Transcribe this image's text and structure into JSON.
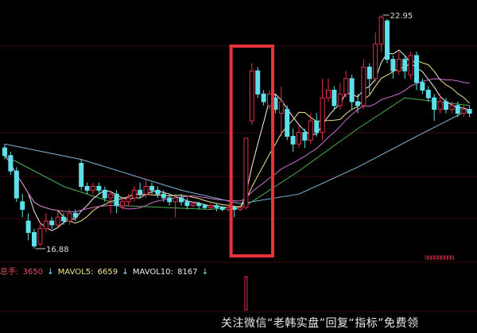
{
  "chart_data": {
    "type": "candlestick",
    "title": "",
    "colors": {
      "up": "#e0304a",
      "down": "#5fe0e8",
      "background": "#000000",
      "highlight_box": "#e8323c"
    },
    "price_labels": {
      "high": "22.95",
      "low": "16.88"
    },
    "candles_ohlc": [
      [
        19.5,
        19.6,
        19.2,
        19.3
      ],
      [
        19.3,
        19.4,
        18.8,
        18.9
      ],
      [
        18.9,
        19.0,
        18.1,
        18.2
      ],
      [
        18.1,
        18.3,
        17.7,
        17.9
      ],
      [
        17.6,
        17.8,
        17.1,
        17.3
      ],
      [
        17.3,
        17.4,
        16.88,
        16.95
      ],
      [
        17.0,
        17.6,
        16.95,
        17.4
      ],
      [
        17.4,
        17.8,
        17.3,
        17.6
      ],
      [
        17.6,
        17.7,
        17.4,
        17.5
      ],
      [
        17.5,
        17.9,
        17.4,
        17.7
      ],
      [
        17.7,
        17.8,
        17.5,
        17.6
      ],
      [
        17.6,
        17.9,
        17.5,
        17.8
      ],
      [
        17.8,
        17.9,
        17.6,
        17.7
      ],
      [
        19.1,
        19.2,
        18.4,
        18.5
      ],
      [
        18.5,
        18.6,
        18.3,
        18.4
      ],
      [
        18.4,
        18.6,
        18.3,
        18.5
      ],
      [
        18.5,
        18.6,
        18.3,
        18.4
      ],
      [
        18.4,
        18.5,
        18.1,
        18.2
      ],
      [
        18.2,
        18.4,
        17.8,
        18.3
      ],
      [
        18.3,
        18.4,
        17.8,
        18.0
      ],
      [
        18.0,
        18.2,
        17.9,
        18.1
      ],
      [
        18.1,
        18.3,
        18.0,
        18.2
      ],
      [
        18.2,
        18.5,
        18.1,
        18.4
      ],
      [
        18.4,
        18.6,
        18.2,
        18.3
      ],
      [
        18.3,
        18.7,
        18.2,
        18.5
      ],
      [
        18.5,
        18.6,
        18.3,
        18.4
      ],
      [
        18.4,
        18.5,
        18.2,
        18.3
      ],
      [
        18.3,
        18.4,
        18.1,
        18.2
      ],
      [
        18.2,
        18.3,
        18.0,
        18.1
      ],
      [
        18.1,
        18.3,
        17.7,
        18.2
      ],
      [
        18.2,
        18.3,
        18.0,
        18.1
      ],
      [
        18.1,
        18.2,
        17.9,
        18.0
      ],
      [
        18.0,
        18.1,
        17.95,
        18.05
      ],
      [
        18.05,
        18.1,
        17.9,
        18.0
      ],
      [
        18.0,
        18.05,
        17.9,
        17.95
      ],
      [
        17.95,
        18.05,
        17.9,
        18.0
      ],
      [
        18.0,
        18.05,
        17.85,
        17.95
      ],
      [
        17.95,
        18.0,
        17.85,
        17.9
      ],
      [
        17.9,
        18.0,
        17.85,
        17.95
      ],
      [
        17.95,
        18.0,
        17.7,
        17.9
      ],
      [
        17.9,
        18.0,
        17.85,
        17.95
      ],
      [
        17.95,
        19.75,
        17.9,
        19.75
      ],
      [
        20.2,
        21.7,
        20.1,
        21.5
      ],
      [
        21.5,
        21.6,
        20.8,
        20.9
      ],
      [
        20.9,
        21.0,
        20.6,
        20.7
      ],
      [
        20.6,
        21.0,
        20.5,
        20.9
      ],
      [
        20.8,
        20.9,
        20.4,
        20.5
      ],
      [
        20.4,
        21.1,
        19.8,
        20.7
      ],
      [
        20.5,
        20.6,
        19.7,
        19.8
      ],
      [
        19.8,
        20.0,
        19.4,
        19.6
      ],
      [
        19.6,
        20.1,
        19.5,
        19.9
      ],
      [
        19.9,
        20.0,
        19.5,
        19.7
      ],
      [
        19.7,
        20.4,
        19.6,
        20.2
      ],
      [
        20.2,
        20.4,
        19.8,
        19.9
      ],
      [
        19.9,
        21.3,
        19.7,
        20.8
      ],
      [
        20.8,
        21.3,
        20.7,
        21.0
      ],
      [
        21.0,
        21.1,
        20.5,
        20.6
      ],
      [
        20.6,
        21.2,
        20.5,
        20.9
      ],
      [
        20.9,
        21.5,
        20.8,
        21.3
      ],
      [
        21.3,
        21.4,
        20.5,
        20.7
      ],
      [
        20.7,
        20.9,
        20.4,
        20.6
      ],
      [
        20.6,
        21.8,
        20.5,
        21.6
      ],
      [
        21.6,
        21.7,
        20.9,
        21.3
      ],
      [
        21.3,
        22.5,
        21.2,
        22.2
      ],
      [
        22.2,
        22.95,
        22.0,
        22.9
      ],
      [
        22.8,
        22.85,
        21.7,
        21.8
      ],
      [
        21.8,
        21.9,
        21.3,
        21.5
      ],
      [
        21.5,
        22.0,
        21.4,
        21.8
      ],
      [
        21.8,
        21.9,
        21.3,
        21.5
      ],
      [
        21.4,
        22.0,
        21.3,
        21.9
      ],
      [
        21.9,
        22.0,
        21.0,
        21.2
      ],
      [
        21.2,
        21.3,
        20.9,
        21.0
      ],
      [
        21.0,
        21.1,
        20.7,
        20.8
      ],
      [
        20.8,
        20.9,
        20.2,
        20.5
      ],
      [
        20.5,
        20.9,
        20.4,
        20.7
      ],
      [
        20.7,
        20.8,
        20.4,
        20.5
      ],
      [
        20.5,
        20.7,
        20.4,
        20.6
      ],
      [
        20.6,
        20.7,
        20.3,
        20.4
      ],
      [
        20.4,
        20.6,
        20.3,
        20.5
      ],
      [
        20.5,
        20.6,
        20.3,
        20.4
      ]
    ],
    "moving_averages": [
      {
        "period": 5,
        "color": "#f0f0f0"
      },
      {
        "period": 10,
        "color": "#f0e68c"
      },
      {
        "period": 20,
        "color": "#d070d0"
      }
    ],
    "long_lines": [
      {
        "color": "#7ab8d8",
        "points": [
          [
            0,
            19.6
          ],
          [
            13,
            19.2
          ],
          [
            30,
            18.4
          ],
          [
            40,
            18.05
          ],
          [
            50,
            18.3
          ],
          [
            60,
            19.0
          ],
          [
            70,
            19.8
          ],
          [
            79,
            20.5
          ]
        ]
      },
      {
        "color": "#4caf50",
        "points": [
          [
            0,
            19.3
          ],
          [
            10,
            18.5
          ],
          [
            20,
            18.0
          ],
          [
            35,
            17.9
          ],
          [
            41,
            18.0
          ],
          [
            50,
            18.9
          ],
          [
            60,
            20.0
          ],
          [
            68,
            20.8
          ],
          [
            79,
            20.6
          ]
        ]
      }
    ],
    "ylim": [
      16.7,
      23.1
    ],
    "highlight_candles": [
      39,
      45
    ],
    "volume_legend": {
      "total_label": "总手:",
      "total_value": "3650",
      "mavol5_label": "MAVOL5:",
      "mavol5_value": "6659",
      "mavol10_label": "MAVOL10:",
      "mavol10_value": "8167",
      "arrow": "↓"
    },
    "volume_spike_candle": 41
  },
  "indicator_text": "qqqqqqqqq",
  "watermark": "关注微信“老韩实盘”回复“指标”免费领"
}
